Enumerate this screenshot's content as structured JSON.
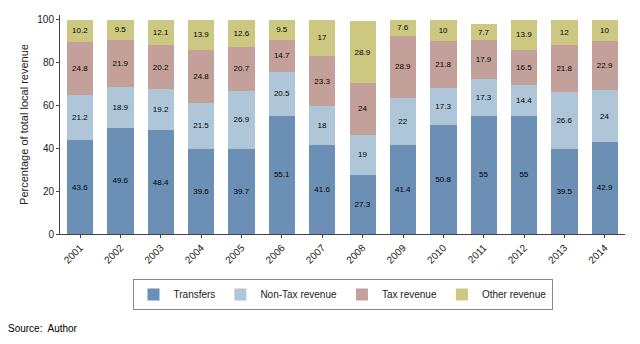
{
  "chart_data": {
    "type": "bar",
    "stacked": true,
    "data_labels": true,
    "grid": false,
    "legend": "bottom",
    "ylabel": "Percentage of total local revenue",
    "annotations": [
      "Source:  Author"
    ],
    "categories": [
      "2001",
      "2002",
      "2003",
      "2004",
      "2005",
      "2006",
      "2007",
      "2008",
      "2009",
      "2010",
      "2011",
      "2012",
      "2013",
      "2014"
    ],
    "series": [
      {
        "name": "Transfers",
        "color": "#6b8fb5",
        "values": [
          43.6,
          49.6,
          48.4,
          39.6,
          39.7,
          55.1,
          41.6,
          27.3,
          41.4,
          50.8,
          55,
          55,
          39.5,
          42.9
        ]
      },
      {
        "name": "Non-Tax revenue",
        "color": "#aec6d8",
        "values": [
          21.2,
          18.9,
          19.2,
          21.5,
          26.9,
          20.5,
          18,
          19,
          22,
          17.3,
          17.3,
          14.4,
          26.6,
          24
        ]
      },
      {
        "name": "Tax revenue",
        "color": "#c4a09a",
        "values": [
          24.8,
          21.9,
          20.2,
          24.8,
          20.7,
          14.7,
          23.3,
          24,
          28.9,
          21.8,
          17.9,
          16.5,
          21.8,
          22.9
        ]
      },
      {
        "name": "Other revenue",
        "color": "#ccc882",
        "values": [
          10.2,
          9.5,
          12.1,
          13.9,
          12.6,
          9.5,
          17,
          28.9,
          7.6,
          10,
          7.7,
          13.9,
          12,
          10
        ]
      }
    ],
    "ylim": [
      0,
      102
    ],
    "yticks": [
      0,
      20,
      40,
      60,
      80,
      100
    ]
  }
}
